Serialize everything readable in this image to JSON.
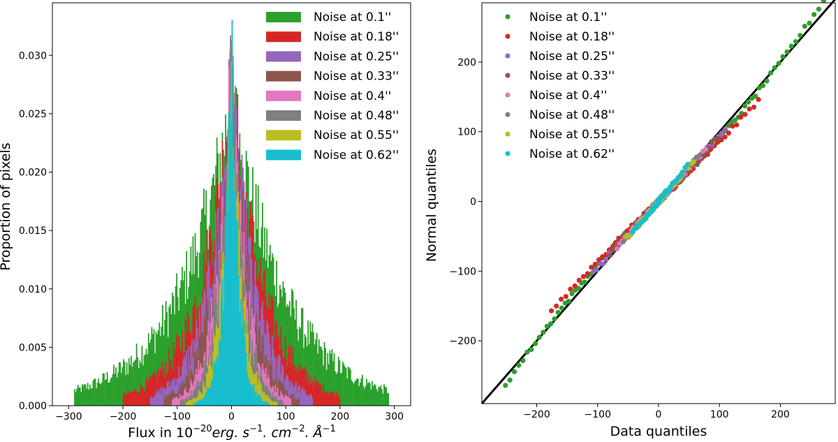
{
  "chart_data": [
    {
      "type": "histogram",
      "xlabel_prefix": "Flux in 10",
      "xlabel_exp": "−20",
      "xlabel_units": "erg. s",
      "xlabel_units_exp": "−1",
      "xlabel_cm": ". cm",
      "xlabel_cm_exp": "−2",
      "xlabel_ang": ". Å",
      "xlabel_ang_exp": "−1",
      "ylabel": "Proportion of pixels",
      "xlim": [
        -330,
        330
      ],
      "ylim": [
        0,
        0.0345
      ],
      "xticks": [
        -300,
        -200,
        -100,
        0,
        100,
        200,
        300
      ],
      "xtick_labels": [
        "−300",
        "−200",
        "−100",
        "0",
        "100",
        "200",
        "300"
      ],
      "yticks": [
        0,
        0.005,
        0.01,
        0.015,
        0.02,
        0.025,
        0.03
      ],
      "ytick_labels": [
        "0.000",
        "0.005",
        "0.010",
        "0.015",
        "0.020",
        "0.025",
        "0.030"
      ],
      "legend_position": "top-right",
      "series": [
        {
          "name": "Noise at 0.1''",
          "color": "#2ca02c",
          "scale": 96,
          "peak": 0.0262,
          "range": 290
        },
        {
          "name": "Noise at 0.18''",
          "color": "#d62728",
          "scale": 58,
          "peak": 0.0275,
          "range": 200
        },
        {
          "name": "Noise at 0.25''",
          "color": "#9467bd",
          "scale": 42,
          "peak": 0.0282,
          "range": 150
        },
        {
          "name": "Noise at 0.33''",
          "color": "#8c564b",
          "scale": 33,
          "peak": 0.0288,
          "range": 125
        },
        {
          "name": "Noise at 0.4''",
          "color": "#e377c2",
          "scale": 27,
          "peak": 0.0292,
          "range": 110
        },
        {
          "name": "Noise at 0.48''",
          "color": "#7f7f7f",
          "scale": 22,
          "peak": 0.0295,
          "range": 95
        },
        {
          "name": "Noise at 0.55''",
          "color": "#bcbd22",
          "scale": 18,
          "peak": 0.0298,
          "range": 85
        },
        {
          "name": "Noise at 0.62''",
          "color": "#17becf",
          "scale": 14,
          "peak": 0.0302,
          "range": 70
        }
      ]
    },
    {
      "type": "scatter",
      "xlabel": "Data quantiles",
      "ylabel": "Normal quantiles",
      "xlim": [
        -290,
        290
      ],
      "ylim": [
        -290,
        285
      ],
      "xticks": [
        -200,
        -100,
        0,
        100,
        200
      ],
      "xtick_labels": [
        "−200",
        "−100",
        "0",
        "100",
        "200"
      ],
      "yticks": [
        -200,
        -100,
        0,
        100,
        200
      ],
      "ytick_labels": [
        "−200",
        "−100",
        "0",
        "100",
        "200"
      ],
      "reference_line": [
        [
          -290,
          -290
        ],
        [
          290,
          290
        ]
      ],
      "legend_position": "top-left",
      "series": [
        {
          "name": "Noise at 0.1''",
          "color": "#2ca02c",
          "x_range": [
            -255,
            275
          ],
          "slope": 0.82,
          "curvature": 0.0009,
          "n": 150
        },
        {
          "name": "Noise at 0.18''",
          "color": "#d62728",
          "x_range": [
            -180,
            168
          ],
          "slope": 0.82,
          "curvature": 0.0004,
          "n": 95
        },
        {
          "name": "Noise at 0.25''",
          "color": "#9467bd",
          "x_range": [
            -110,
            112
          ],
          "slope": 0.9,
          "curvature": 0.0006,
          "n": 85
        },
        {
          "name": "Noise at 0.33''",
          "color": "#8c564b",
          "x_range": [
            -82,
            100
          ],
          "slope": 0.92,
          "curvature": 0.0004,
          "n": 80
        },
        {
          "name": "Noise at 0.4''",
          "color": "#e377c2",
          "x_range": [
            -70,
            80
          ],
          "slope": 0.95,
          "curvature": 0.0003,
          "n": 70
        },
        {
          "name": "Noise at 0.48''",
          "color": "#7f7f7f",
          "x_range": [
            -60,
            70
          ],
          "slope": 0.98,
          "curvature": 0.0003,
          "n": 60
        },
        {
          "name": "Noise at 0.55''",
          "color": "#bcbd22",
          "x_range": [
            -55,
            60
          ],
          "slope": 1.0,
          "curvature": 0.0002,
          "n": 55
        },
        {
          "name": "Noise at 0.62''",
          "color": "#17becf",
          "x_range": [
            -45,
            50
          ],
          "slope": 1.05,
          "curvature": 0.0002,
          "n": 50
        }
      ]
    }
  ]
}
